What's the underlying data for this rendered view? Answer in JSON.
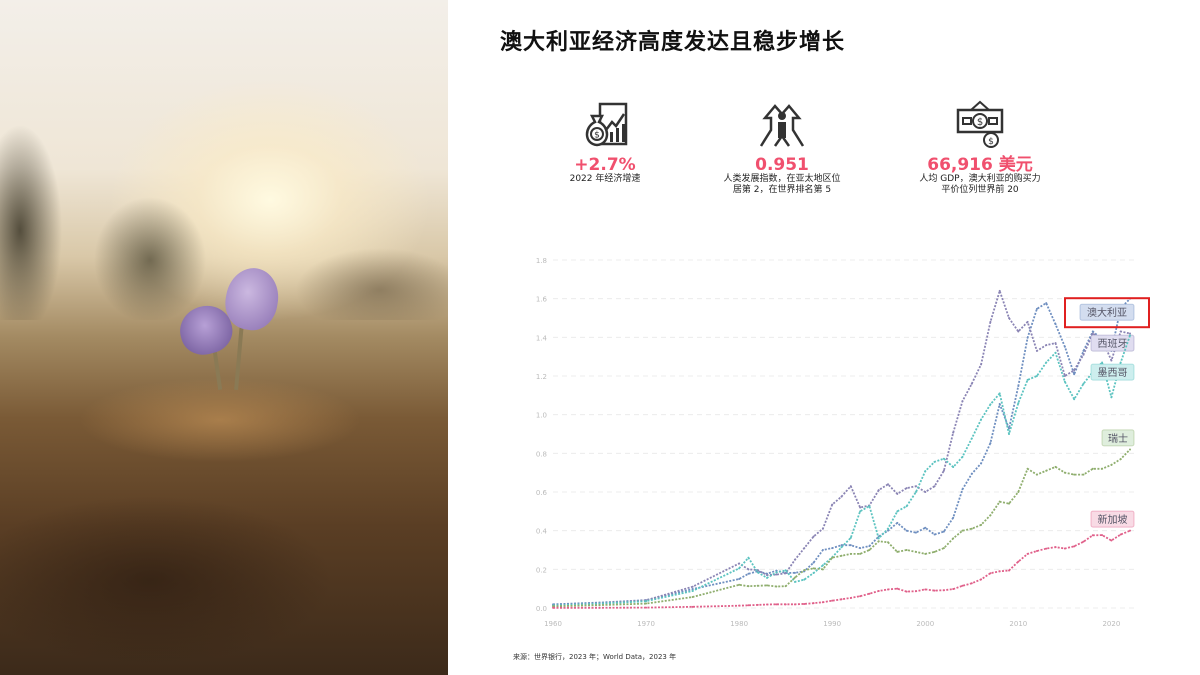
{
  "title": "澳大利亚经济高度发达且稳步增长",
  "stats": [
    {
      "icon": "money-bag-growth-chart-icon",
      "value": "+2.7%",
      "desc": [
        "2022 年经济增速"
      ]
    },
    {
      "icon": "upward-arrows-person-icon",
      "value": "0.951",
      "desc": [
        "人类发展指数，在亚太地区位",
        "居第 2，在世界排名第 5"
      ]
    },
    {
      "icon": "dollar-bill-icon",
      "value": "66,916 美元",
      "desc": [
        "人均 GDP，澳大利亚的购买力",
        "平价位列世界前 20"
      ]
    }
  ],
  "colors": {
    "accent": "#f0506e",
    "highlight_box": "#e02020"
  },
  "chart_data": {
    "type": "line",
    "title": "",
    "xlabel": "",
    "ylabel": "",
    "xlim": [
      1960,
      2022
    ],
    "ylim": [
      0,
      1.8
    ],
    "yticks": [
      "0.0",
      "0.2",
      "0.4",
      "0.6",
      "0.8",
      "1.0",
      "1.2",
      "1.4",
      "1.6",
      "1.8"
    ],
    "xticks": [
      "1960",
      "1970",
      "1980",
      "1990",
      "2000",
      "2010",
      "2020"
    ],
    "grid": true,
    "legend": "right-end labels",
    "highlighted_series": "澳大利亚",
    "x": [
      1960,
      1965,
      1970,
      1975,
      1980,
      1981,
      1982,
      1983,
      1984,
      1985,
      1986,
      1987,
      1988,
      1989,
      1990,
      1991,
      1992,
      1993,
      1994,
      1995,
      1996,
      1997,
      1998,
      1999,
      2000,
      2001,
      2002,
      2003,
      2004,
      2005,
      2006,
      2007,
      2008,
      2009,
      2010,
      2011,
      2012,
      2013,
      2014,
      2015,
      2016,
      2017,
      2018,
      2019,
      2020,
      2021,
      2022
    ],
    "series": [
      {
        "name": "澳大利亚",
        "color": "#6f8fc0",
        "label_bg": "#d3ddef",
        "values": [
          0.019,
          0.028,
          0.041,
          0.098,
          0.15,
          0.177,
          0.19,
          0.177,
          0.193,
          0.181,
          0.182,
          0.19,
          0.235,
          0.3,
          0.31,
          0.325,
          0.325,
          0.31,
          0.32,
          0.37,
          0.4,
          0.44,
          0.4,
          0.39,
          0.415,
          0.38,
          0.395,
          0.467,
          0.614,
          0.694,
          0.748,
          0.853,
          1.055,
          0.928,
          1.148,
          1.398,
          1.547,
          1.577,
          1.468,
          1.351,
          1.209,
          1.33,
          1.43,
          1.39,
          1.33,
          1.55,
          1.6
        ]
      },
      {
        "name": "西班牙",
        "color": "#8a84b4",
        "label_bg": "#e0ddf0",
        "values": [
          0.012,
          0.024,
          0.04,
          0.11,
          0.23,
          0.2,
          0.196,
          0.17,
          0.173,
          0.18,
          0.25,
          0.31,
          0.37,
          0.41,
          0.535,
          0.576,
          0.63,
          0.52,
          0.53,
          0.61,
          0.64,
          0.59,
          0.62,
          0.63,
          0.6,
          0.63,
          0.71,
          0.907,
          1.07,
          1.16,
          1.26,
          1.48,
          1.64,
          1.5,
          1.43,
          1.48,
          1.33,
          1.36,
          1.37,
          1.2,
          1.23,
          1.31,
          1.42,
          1.39,
          1.28,
          1.43,
          1.42
        ]
      },
      {
        "name": "墨西哥",
        "color": "#5cc3c0",
        "label_bg": "#cdeeee",
        "values": [
          0.013,
          0.022,
          0.035,
          0.088,
          0.205,
          0.26,
          0.184,
          0.156,
          0.184,
          0.195,
          0.135,
          0.147,
          0.181,
          0.221,
          0.262,
          0.314,
          0.363,
          0.5,
          0.527,
          0.36,
          0.41,
          0.5,
          0.526,
          0.6,
          0.708,
          0.756,
          0.772,
          0.729,
          0.782,
          0.877,
          0.975,
          1.053,
          1.11,
          0.9,
          1.06,
          1.18,
          1.2,
          1.27,
          1.32,
          1.17,
          1.08,
          1.16,
          1.22,
          1.27,
          1.09,
          1.27,
          1.41
        ]
      },
      {
        "name": "瑞士",
        "color": "#8fae6e",
        "label_bg": "#dfeedd",
        "values": [
          0.009,
          0.015,
          0.023,
          0.057,
          0.12,
          0.113,
          0.115,
          0.117,
          0.111,
          0.113,
          0.158,
          0.196,
          0.205,
          0.2,
          0.26,
          0.27,
          0.28,
          0.28,
          0.3,
          0.345,
          0.34,
          0.29,
          0.3,
          0.29,
          0.28,
          0.29,
          0.31,
          0.36,
          0.4,
          0.41,
          0.43,
          0.48,
          0.55,
          0.54,
          0.6,
          0.72,
          0.69,
          0.71,
          0.73,
          0.7,
          0.69,
          0.69,
          0.72,
          0.72,
          0.74,
          0.77,
          0.82
        ]
      },
      {
        "name": "新加坡",
        "color": "#e0608a",
        "label_bg": "#f8dbe5",
        "values": [
          0.001,
          0.001,
          0.002,
          0.006,
          0.012,
          0.014,
          0.016,
          0.018,
          0.019,
          0.019,
          0.019,
          0.021,
          0.025,
          0.03,
          0.038,
          0.045,
          0.052,
          0.061,
          0.074,
          0.088,
          0.096,
          0.1,
          0.085,
          0.087,
          0.096,
          0.09,
          0.092,
          0.098,
          0.115,
          0.128,
          0.148,
          0.18,
          0.19,
          0.194,
          0.24,
          0.28,
          0.295,
          0.307,
          0.315,
          0.308,
          0.319,
          0.343,
          0.376,
          0.377,
          0.349,
          0.38,
          0.4
        ]
      }
    ]
  },
  "source": "来源：世界银行，2023 年；World Data，2023 年"
}
